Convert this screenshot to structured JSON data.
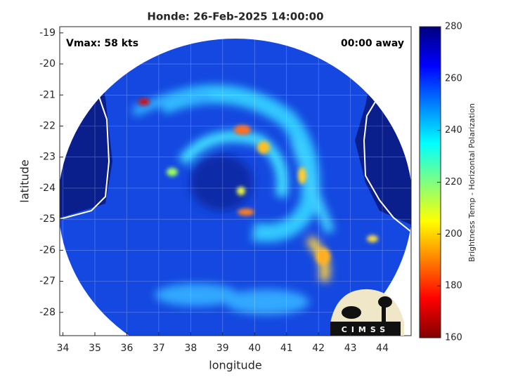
{
  "chart_data": {
    "type": "heatmap",
    "title": "Honde: 26-Feb-2025 14:00:00",
    "xlabel": "longitude",
    "ylabel": "latitude",
    "annotations": [
      "Vmax: 58 kts",
      "00:00 away"
    ],
    "xlim": [
      33.9,
      44.9
    ],
    "xticks": [
      34,
      35,
      36,
      37,
      38,
      39,
      40,
      41,
      42,
      43,
      44
    ],
    "ylim": [
      -28.75,
      -18.8
    ],
    "yticks": [
      -28,
      -27,
      -26,
      -25,
      -24,
      -23,
      -22,
      -21,
      -20,
      -19
    ],
    "grid": true,
    "colorbar": {
      "label": "Brightness Temp - Horizontal Polarization",
      "clim": [
        160,
        280
      ],
      "ticks": [
        160,
        180,
        200,
        220,
        240,
        260,
        280
      ],
      "colormap": [
        "#800000",
        "#ff0000",
        "#ff8000",
        "#ffff00",
        "#80ff80",
        "#00ffff",
        "#0080ff",
        "#0000ff",
        "#000080"
      ]
    },
    "logo": "CIMSS"
  }
}
